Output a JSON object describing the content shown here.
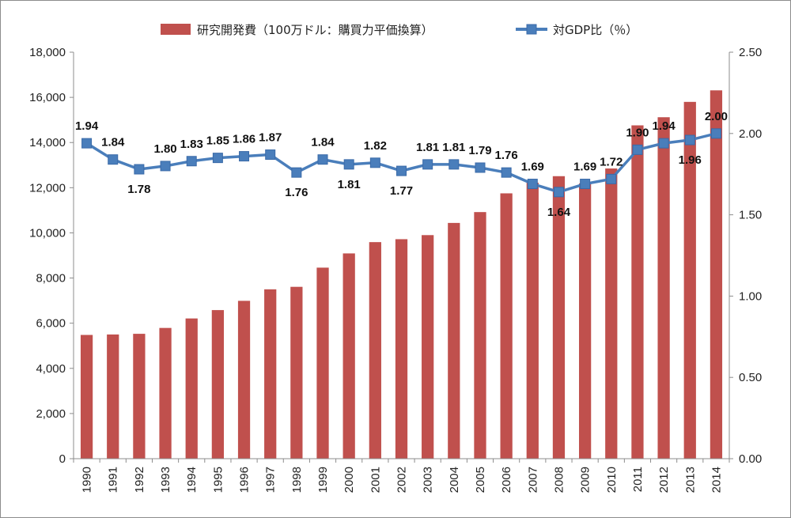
{
  "chart_data": {
    "type": "bar+line",
    "categories": [
      "1990",
      "1991",
      "1992",
      "1993",
      "1994",
      "1995",
      "1996",
      "1997",
      "1998",
      "1999",
      "2000",
      "2001",
      "2002",
      "2003",
      "2004",
      "2005",
      "2006",
      "2007",
      "2008",
      "2009",
      "2010",
      "2011",
      "2012",
      "2013",
      "2014"
    ],
    "series": [
      {
        "name": "研究開発費（100万ドル：購買力平価換算）",
        "type": "bar",
        "axis": "left",
        "color": "#c0504d",
        "values": [
          5480,
          5500,
          5530,
          5790,
          6210,
          6580,
          6990,
          7500,
          7610,
          8460,
          9090,
          9590,
          9720,
          9900,
          10440,
          10920,
          11750,
          12220,
          12510,
          12190,
          12850,
          14760,
          15120,
          15800,
          16310
        ]
      },
      {
        "name": "対GDP比（％）",
        "type": "line",
        "axis": "right",
        "color": "#4a7ebb",
        "marker": "square",
        "values": [
          1.94,
          1.84,
          1.78,
          1.8,
          1.83,
          1.85,
          1.86,
          1.87,
          1.76,
          1.84,
          1.81,
          1.82,
          1.77,
          1.81,
          1.81,
          1.79,
          1.76,
          1.69,
          1.64,
          1.69,
          1.72,
          1.9,
          1.94,
          1.96,
          2.0
        ],
        "labels": [
          "1.94",
          "1.84",
          "1.78",
          "1.80",
          "1.83",
          "1.85",
          "1.86",
          "1.87",
          "1.76",
          "1.84",
          "1.81",
          "1.82",
          "1.77",
          "1.81",
          "1.81",
          "1.79",
          "1.76",
          "1.69",
          "1.64",
          "1.69",
          "1.72",
          "1.90",
          "1.94",
          "1.96",
          "2.00"
        ]
      }
    ],
    "y_left": {
      "ylim": [
        0,
        18000
      ],
      "ticks": [
        "0",
        "2,000",
        "4,000",
        "6,000",
        "8,000",
        "10,000",
        "12,000",
        "14,000",
        "16,000",
        "18,000"
      ]
    },
    "y_right": {
      "ylim": [
        0,
        2.5
      ],
      "ticks": [
        "0.00",
        "0.50",
        "1.00",
        "1.50",
        "2.00",
        "2.50"
      ]
    },
    "legend_position": "top",
    "grid": false,
    "x_tick_rotation": "vertical"
  }
}
